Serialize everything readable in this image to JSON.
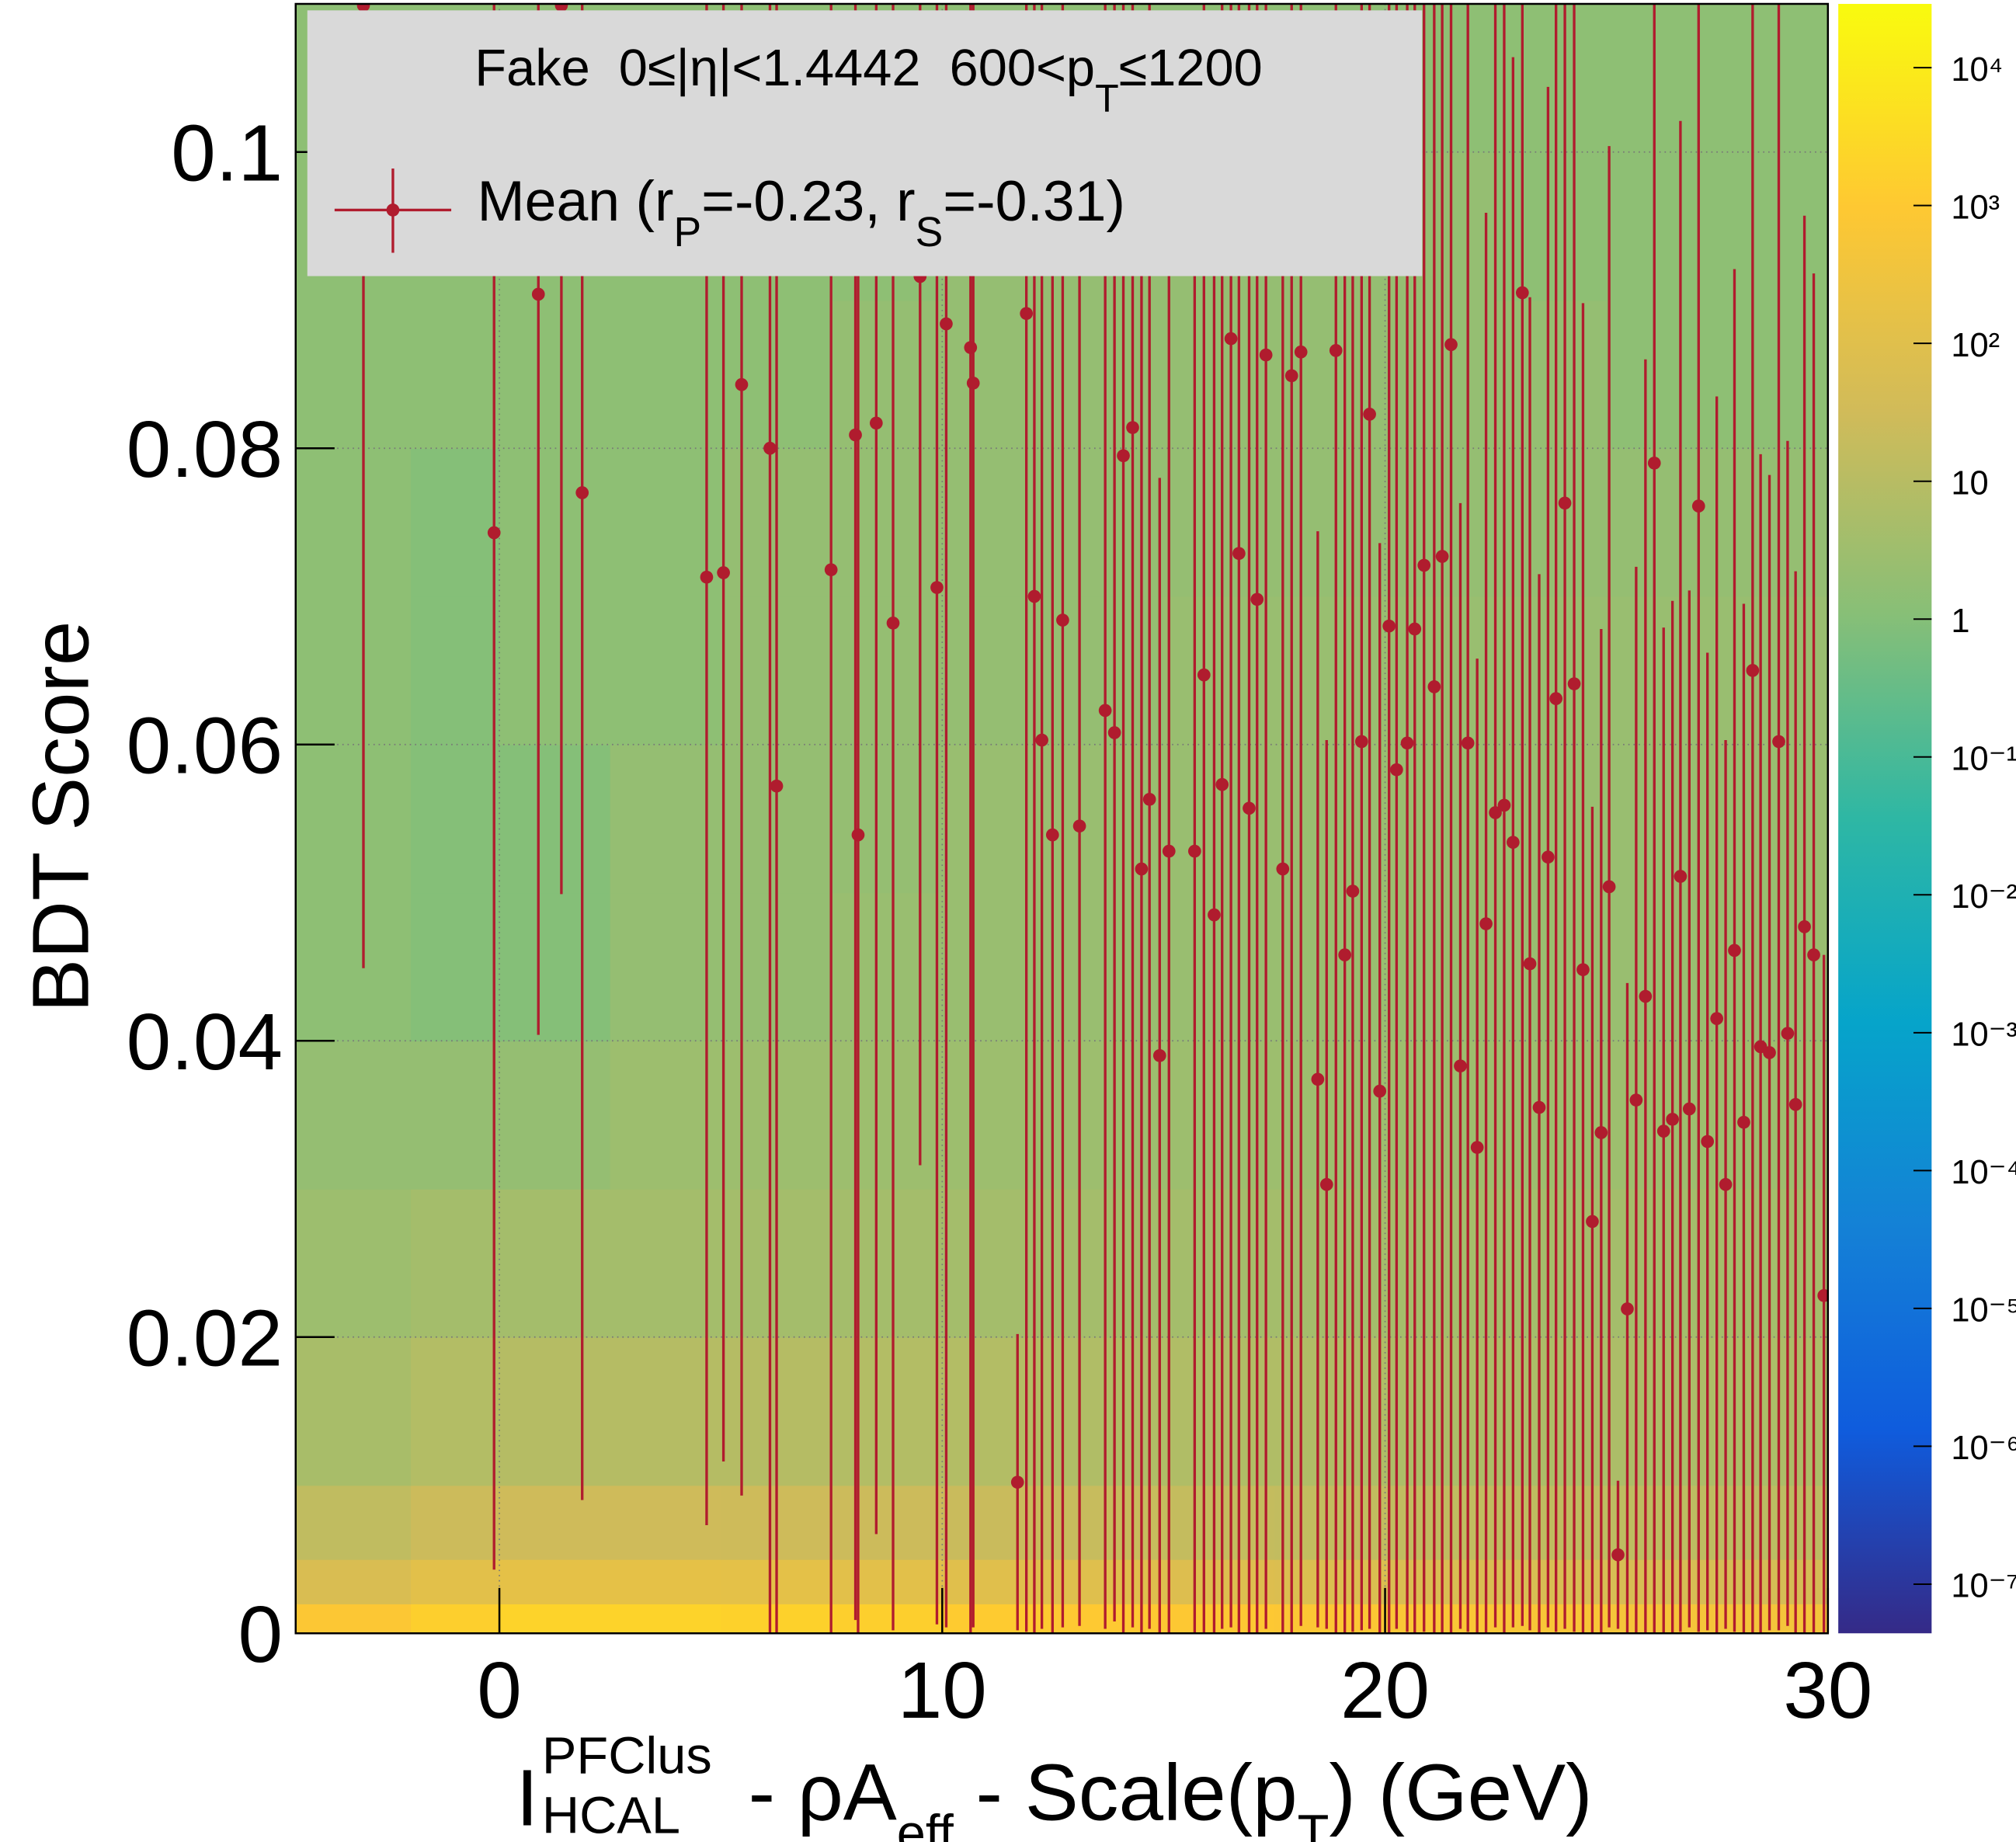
{
  "chart_data": {
    "type": "heatmap",
    "ylabel": "BDT Score",
    "xlabel": [
      "I",
      "PFClus",
      "HCAL",
      " - ρA",
      "eff",
      " - Scale(p",
      "T",
      ") (GeV)"
    ],
    "xlim": [
      -4.6,
      30
    ],
    "xticks": [
      0,
      10,
      20,
      30
    ],
    "ylim": [
      0,
      0.11
    ],
    "yticks": [
      0,
      0.02,
      0.04,
      0.06,
      0.08,
      0.1
    ],
    "grid": true,
    "log_z": true,
    "zlim": [
      4.4e-08,
      29000
    ],
    "zticks": [
      {
        "value": 10000,
        "label": "10⁴"
      },
      {
        "value": 1000,
        "label": "10³"
      },
      {
        "value": 100,
        "label": "10²"
      },
      10,
      1,
      {
        "value": 0.1,
        "label": "10⁻¹"
      },
      {
        "value": 0.01,
        "label": "10⁻²"
      },
      {
        "value": 0.001,
        "label": "10⁻³"
      },
      {
        "value": 0.0001,
        "label": "10⁻⁴"
      },
      {
        "value": 1e-05,
        "label": "10⁻⁵"
      },
      {
        "value": 1e-06,
        "label": "10⁻⁶"
      },
      {
        "value": 1e-07,
        "label": "10⁻⁷"
      }
    ],
    "x_bins": [
      -4.6,
      -2,
      0,
      2.5,
      5,
      7.5,
      10,
      12.5,
      15,
      17.5,
      20,
      22.5,
      25,
      27.5,
      30
    ],
    "y_bins": [
      0,
      0.002,
      0.005,
      0.01,
      0.02,
      0.03,
      0.04,
      0.05,
      0.06,
      0.07,
      0.08,
      0.09,
      0.1,
      0.11
    ],
    "z": [
      [
        800,
        1500,
        2000,
        2000,
        1800,
        1500,
        1200,
        1000,
        900,
        800,
        700,
        600,
        500,
        450
      ],
      [
        60,
        120,
        150,
        150,
        140,
        120,
        100,
        90,
        80,
        70,
        60,
        55,
        50,
        45
      ],
      [
        15,
        25,
        30,
        30,
        28,
        25,
        22,
        20,
        18,
        16,
        15,
        14,
        13,
        12
      ],
      [
        5,
        8,
        9,
        9,
        9,
        8,
        8,
        7,
        7,
        7,
        6,
        6,
        6,
        6
      ],
      [
        3,
        4,
        4,
        4,
        4,
        4,
        4,
        4,
        4,
        4,
        4,
        4,
        4,
        4
      ],
      [
        2,
        2,
        2,
        3,
        3,
        3,
        3,
        3,
        3,
        3,
        3,
        3,
        3,
        3
      ],
      [
        1.5,
        1,
        1,
        2,
        2,
        2.5,
        2.5,
        2.5,
        2.5,
        2.5,
        2.5,
        2.5,
        2.5,
        2.5
      ],
      [
        1.5,
        1,
        1,
        2,
        2,
        2,
        2.5,
        2.5,
        2.5,
        2.5,
        2.5,
        2.5,
        2.5,
        2.5
      ],
      [
        1.5,
        1,
        1.5,
        1.5,
        2,
        2,
        2,
        2,
        2.5,
        2.5,
        2.5,
        2.5,
        2.5,
        2.5
      ],
      [
        1.5,
        1,
        1.5,
        1.5,
        2,
        2,
        2,
        2,
        2,
        2,
        2,
        2,
        2,
        2
      ],
      [
        1.5,
        1.5,
        1.5,
        1.5,
        1.5,
        2,
        2,
        2,
        2,
        2,
        2,
        2,
        1.5,
        1.5
      ],
      [
        1.5,
        1.5,
        1.5,
        1.5,
        1.5,
        1.5,
        2,
        2,
        2,
        2,
        2,
        1.5,
        1.5,
        1.5
      ],
      [
        1.5,
        1.5,
        1.5,
        1.5,
        1.5,
        1.5,
        1.5,
        1.5,
        1.5,
        1.5,
        1.5,
        1.5,
        1.5,
        1.5
      ]
    ],
    "overlay": {
      "type": "errorbar",
      "title": [
        "Fake  0≤|η|<1.4442  600<p",
        "T",
        "≤1200"
      ],
      "series": [
        {
          "name": [
            "Mean (r",
            "P",
            "=-0.23, r",
            "S",
            "=-0.31)"
          ],
          "color": "#b01c2e",
          "x": [
            -3.07,
            -0.12,
            0.88,
            1.4,
            1.87,
            4.68,
            5.06,
            5.47,
            6.11,
            6.26,
            7.49,
            8.04,
            8.1,
            8.51,
            8.89,
            9.5,
            9.88,
            10.09,
            10.64,
            10.7,
            11.7,
            11.9,
            12.08,
            12.25,
            12.49,
            12.72,
            13.1,
            13.68,
            13.89,
            14.09,
            14.3,
            14.5,
            14.68,
            14.91,
            15.12,
            15.7,
            15.91,
            16.14,
            16.32,
            16.52,
            16.7,
            16.93,
            17.11,
            17.31,
            17.69,
            17.89,
            18.1,
            18.48,
            18.68,
            18.89,
            19.09,
            19.27,
            19.47,
            19.65,
            19.88,
            20.09,
            20.26,
            20.5,
            20.67,
            20.88,
            21.11,
            21.29,
            21.49,
            21.7,
            21.87,
            22.08,
            22.28,
            22.49,
            22.69,
            22.89,
            23.1,
            23.27,
            23.48,
            23.68,
            23.86,
            24.06,
            24.27,
            24.47,
            24.68,
            24.88,
            25.06,
            25.26,
            25.47,
            25.67,
            25.88,
            26.08,
            26.29,
            26.49,
            26.67,
            26.87,
            27.08,
            27.28,
            27.49,
            27.69,
            27.89,
            28.1,
            28.3,
            28.48,
            28.68,
            28.89,
            29.09,
            29.27,
            29.47,
            29.68,
            29.91
          ],
          "values": [
            0.1099,
            0.0743,
            0.0904,
            0.1099,
            0.077,
            0.0713,
            0.0716,
            0.0843,
            0.08,
            0.0572,
            0.0718,
            0.0809,
            0.0539,
            0.0817,
            0.0682,
            0.0916,
            0.0706,
            0.0884,
            0.0868,
            0.0844,
            0.0102,
            0.0891,
            0.07,
            0.0603,
            0.0539,
            0.0684,
            0.0545,
            0.0623,
            0.0608,
            0.0795,
            0.0814,
            0.0516,
            0.0563,
            0.039,
            0.0528,
            0.0528,
            0.0647,
            0.0485,
            0.0573,
            0.0874,
            0.0729,
            0.0557,
            0.0698,
            0.0863,
            0.0516,
            0.0849,
            0.0865,
            0.0374,
            0.0303,
            0.0866,
            0.0458,
            0.0501,
            0.0602,
            0.0823,
            0.0366,
            0.068,
            0.0583,
            0.0601,
            0.0678,
            0.0721,
            0.0639,
            0.0727,
            0.087,
            0.0383,
            0.0601,
            0.0328,
            0.0479,
            0.0554,
            0.0559,
            0.0534,
            0.0905,
            0.0452,
            0.0355,
            0.0524,
            0.0631,
            0.0763,
            0.0641,
            0.0448,
            0.0278,
            0.0338,
            0.0504,
            0.0053,
            0.0219,
            0.036,
            0.043,
            0.079,
            0.0339,
            0.0347,
            0.0511,
            0.0354,
            0.0761,
            0.0332,
            0.0415,
            0.0303,
            0.0461,
            0.0345,
            0.065,
            0.0396,
            0.0392,
            0.0602,
            0.0405,
            0.0357,
            0.0477,
            0.0458,
            0.0228
          ],
          "errors": [
            0.065,
            0.07,
            0.05,
            0.06,
            0.068,
            0.064,
            0.06,
            0.075,
            0.08,
            0.07,
            0.072,
            0.08,
            0.054,
            0.075,
            0.068,
            0.06,
            0.07,
            0.088,
            0.087,
            0.084,
            0.01,
            0.089,
            0.07,
            0.06,
            0.054,
            0.068,
            0.054,
            0.062,
            0.06,
            0.08,
            0.081,
            0.052,
            0.056,
            0.039,
            0.053,
            0.053,
            0.065,
            0.049,
            0.057,
            0.087,
            0.073,
            0.056,
            0.07,
            0.086,
            0.052,
            0.085,
            0.086,
            0.037,
            0.03,
            0.087,
            0.046,
            0.05,
            0.06,
            0.082,
            0.037,
            0.068,
            0.058,
            0.06,
            0.068,
            0.072,
            0.064,
            0.073,
            0.087,
            0.038,
            0.06,
            0.033,
            0.048,
            0.055,
            0.056,
            0.053,
            0.09,
            0.045,
            0.036,
            0.052,
            0.063,
            0.076,
            0.064,
            0.045,
            0.028,
            0.034,
            0.05,
            0.005,
            0.022,
            0.036,
            0.043,
            0.079,
            0.034,
            0.035,
            0.051,
            0.035,
            0.076,
            0.033,
            0.042,
            0.03,
            0.046,
            0.035,
            0.065,
            0.04,
            0.039,
            0.06,
            0.04,
            0.036,
            0.048,
            0.046,
            0.023
          ]
        }
      ]
    }
  }
}
